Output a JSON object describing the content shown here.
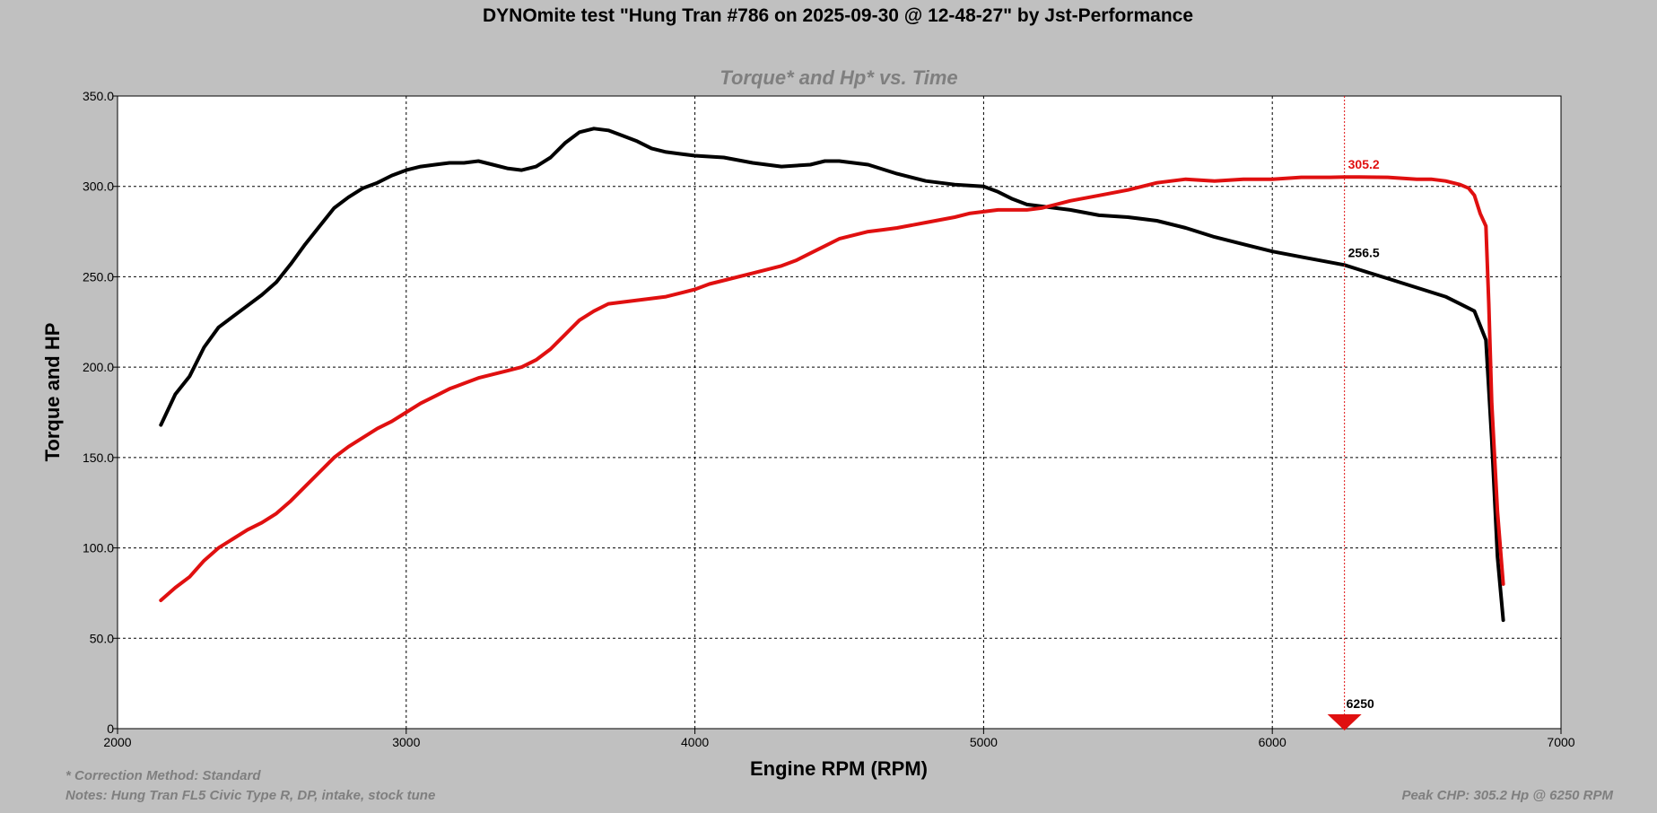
{
  "chart_data": {
    "type": "line",
    "title": "DYNOmite test \"Hung Tran #786 on 2025-09-30 @ 12-48-27\" by Jst-Performance",
    "subtitle": "Torque* and Hp* vs. Time",
    "xlabel": "Engine RPM (RPM)",
    "ylabel": "Torque and HP",
    "xlim": [
      2000,
      7000
    ],
    "ylim": [
      0,
      350
    ],
    "x_ticks": [
      "2000",
      "3000",
      "4000",
      "5000",
      "6000",
      "7000"
    ],
    "y_ticks": [
      "0",
      "50.0",
      "100.0",
      "150.0",
      "200.0",
      "250.0",
      "300.0",
      "350.0"
    ],
    "grid": true,
    "series": [
      {
        "color": "#000000",
        "x": [
          2150,
          2200,
          2250,
          2300,
          2350,
          2400,
          2500,
          2550,
          2600,
          2650,
          2700,
          2750,
          2800,
          2850,
          2900,
          2950,
          3000,
          3050,
          3100,
          3150,
          3200,
          3250,
          3300,
          3350,
          3400,
          3450,
          3500,
          3550,
          3600,
          3650,
          3700,
          3750,
          3800,
          3850,
          3900,
          3950,
          4000,
          4100,
          4200,
          4300,
          4400,
          4450,
          4500,
          4550,
          4600,
          4700,
          4800,
          4900,
          5000,
          5050,
          5100,
          5150,
          5200,
          5300,
          5400,
          5500,
          5600,
          5700,
          5800,
          5900,
          6000,
          6100,
          6200,
          6250,
          6300,
          6400,
          6500,
          6600,
          6650,
          6700,
          6740,
          6760,
          6780,
          6800
        ],
        "values": [
          168,
          185,
          195,
          211,
          222,
          228,
          240,
          247,
          257,
          268,
          278,
          288,
          294,
          299,
          302,
          306,
          309,
          311,
          312,
          313,
          313,
          314,
          312,
          310,
          309,
          311,
          316,
          324,
          330,
          332,
          331,
          328,
          325,
          321,
          319,
          318,
          317,
          316,
          313,
          311,
          312,
          314,
          314,
          313,
          312,
          307,
          303,
          301,
          300,
          297,
          293,
          290,
          289,
          287,
          284,
          283,
          281,
          277,
          272,
          268,
          264,
          261,
          258,
          256.5,
          254,
          249,
          244,
          239,
          235,
          231,
          215,
          160,
          95,
          60
        ]
      },
      {
        "color": "#e01010",
        "x": [
          2150,
          2200,
          2250,
          2300,
          2350,
          2400,
          2450,
          2500,
          2550,
          2600,
          2650,
          2700,
          2750,
          2800,
          2850,
          2900,
          2950,
          3000,
          3050,
          3100,
          3150,
          3200,
          3250,
          3300,
          3350,
          3400,
          3450,
          3500,
          3550,
          3600,
          3650,
          3700,
          3750,
          3800,
          3850,
          3900,
          3950,
          4000,
          4050,
          4100,
          4200,
          4300,
          4350,
          4400,
          4450,
          4500,
          4550,
          4600,
          4650,
          4700,
          4800,
          4900,
          4950,
          5000,
          5050,
          5100,
          5150,
          5200,
          5250,
          5300,
          5400,
          5500,
          5600,
          5700,
          5800,
          5900,
          6000,
          6100,
          6200,
          6250,
          6300,
          6400,
          6500,
          6550,
          6600,
          6650,
          6680,
          6700,
          6720,
          6740,
          6750,
          6760,
          6780,
          6800
        ],
        "values": [
          71,
          78,
          84,
          93,
          100,
          105,
          110,
          114,
          119,
          126,
          134,
          142,
          150,
          156,
          161,
          166,
          170,
          175,
          180,
          184,
          188,
          191,
          194,
          196,
          198,
          200,
          204,
          210,
          218,
          226,
          231,
          235,
          236,
          237,
          238,
          239,
          241,
          243,
          246,
          248,
          252,
          256,
          259,
          263,
          267,
          271,
          273,
          275,
          276,
          277,
          280,
          283,
          285,
          286,
          287,
          287,
          287,
          288,
          290,
          292,
          295,
          298,
          302,
          304,
          303,
          304,
          304,
          305,
          305,
          305.2,
          305.2,
          305,
          304,
          304,
          303,
          301,
          299,
          295,
          285,
          278,
          235,
          180,
          120,
          80
        ]
      }
    ],
    "cursor": {
      "x_value": 6250,
      "x_label": "6250",
      "red_label": "305.2",
      "black_label": "256.5",
      "red_value": 305.2,
      "black_value": 256.5
    }
  },
  "notes": {
    "correction": "* Correction Method: Standard",
    "notes_line": "Notes: Hung Tran FL5 Civic Type R, DP, intake, stock tune",
    "peak": "Peak CHP: 305.2 Hp @ 6250 RPM"
  }
}
